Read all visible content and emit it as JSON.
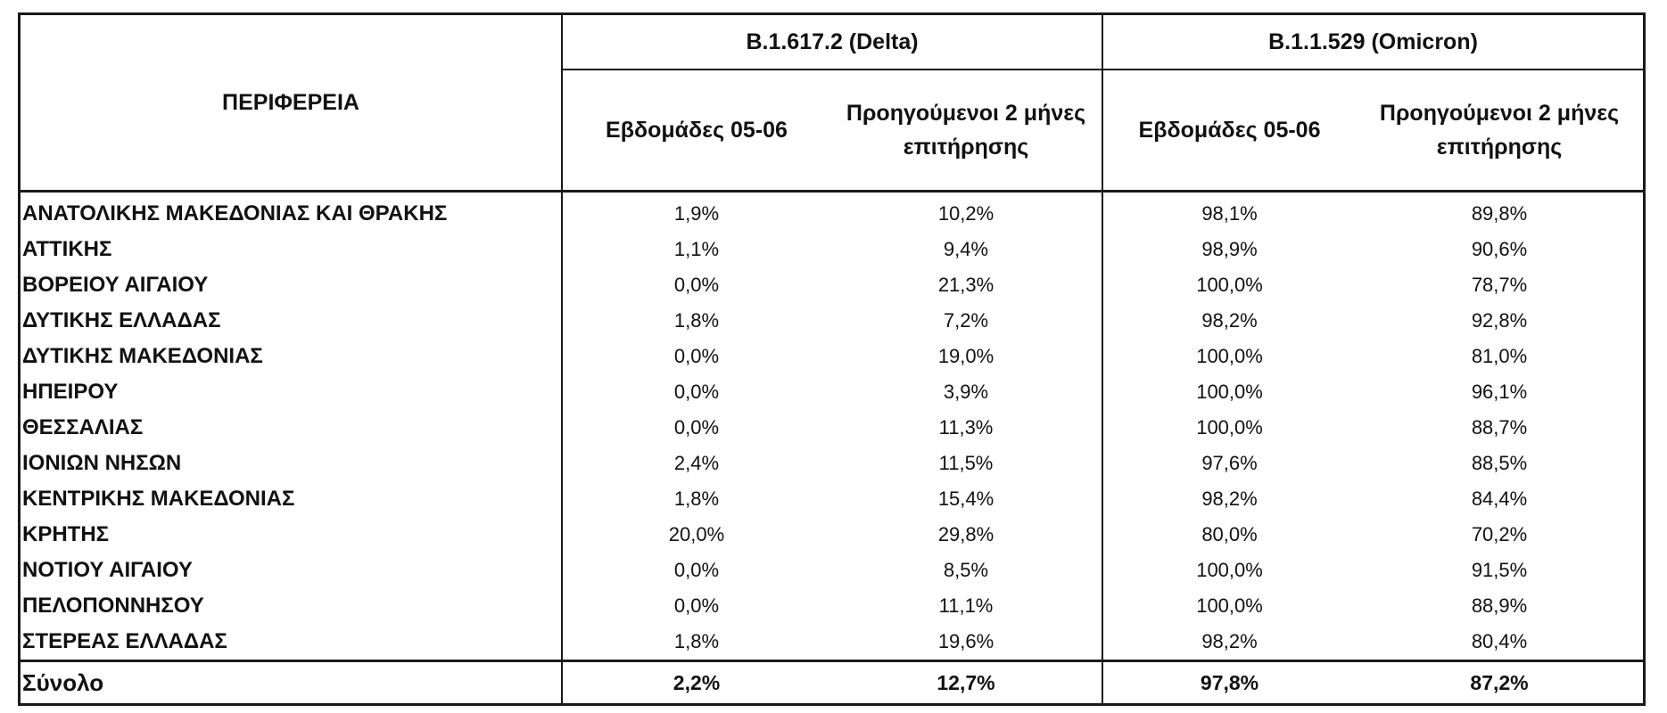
{
  "table": {
    "region_header": "ΠΕΡΙΦΕΡΕΙΑ",
    "groups": [
      {
        "name": "B.1.617.2 (Delta)",
        "sub_headers": [
          "Εβδομάδες 05-06",
          "Προηγούμενοι 2 μήνες επιτήρησης"
        ]
      },
      {
        "name": "B.1.1.529 (Omicron)",
        "sub_headers": [
          "Εβδομάδες 05-06",
          "Προηγούμενοι 2 μήνες επιτήρησης"
        ]
      }
    ],
    "rows": [
      {
        "region": "ΑΝΑΤΟΛΙΚΗΣ ΜΑΚΕΔΟΝΙΑΣ ΚΑΙ ΘΡΑΚΗΣ",
        "values": [
          "1,9%",
          "10,2%",
          "98,1%",
          "89,8%"
        ]
      },
      {
        "region": "ΑΤΤΙΚΗΣ",
        "values": [
          "1,1%",
          "9,4%",
          "98,9%",
          "90,6%"
        ]
      },
      {
        "region": "ΒΟΡΕΙΟΥ ΑΙΓΑΙΟΥ",
        "values": [
          "0,0%",
          "21,3%",
          "100,0%",
          "78,7%"
        ]
      },
      {
        "region": "ΔΥΤΙΚΗΣ ΕΛΛΑΔΑΣ",
        "values": [
          "1,8%",
          "7,2%",
          "98,2%",
          "92,8%"
        ]
      },
      {
        "region": "ΔΥΤΙΚΗΣ ΜΑΚΕΔΟΝΙΑΣ",
        "values": [
          "0,0%",
          "19,0%",
          "100,0%",
          "81,0%"
        ]
      },
      {
        "region": "ΗΠΕΙΡΟΥ",
        "values": [
          "0,0%",
          "3,9%",
          "100,0%",
          "96,1%"
        ]
      },
      {
        "region": "ΘΕΣΣΑΛΙΑΣ",
        "values": [
          "0,0%",
          "11,3%",
          "100,0%",
          "88,7%"
        ]
      },
      {
        "region": "ΙΟΝΙΩΝ ΝΗΣΩΝ",
        "values": [
          "2,4%",
          "11,5%",
          "97,6%",
          "88,5%"
        ]
      },
      {
        "region": "ΚΕΝΤΡΙΚΗΣ ΜΑΚΕΔΟΝΙΑΣ",
        "values": [
          "1,8%",
          "15,4%",
          "98,2%",
          "84,4%"
        ]
      },
      {
        "region": "ΚΡΗΤΗΣ",
        "values": [
          "20,0%",
          "29,8%",
          "80,0%",
          "70,2%"
        ]
      },
      {
        "region": "ΝΟΤΙΟΥ ΑΙΓΑΙΟΥ",
        "values": [
          "0,0%",
          "8,5%",
          "100,0%",
          "91,5%"
        ]
      },
      {
        "region": "ΠΕΛΟΠΟΝΝΗΣΟΥ",
        "values": [
          "0,0%",
          "11,1%",
          "100,0%",
          "88,9%"
        ]
      },
      {
        "region": "ΣΤΕΡΕΑΣ ΕΛΛΑΔΑΣ",
        "values": [
          "1,8%",
          "19,6%",
          "98,2%",
          "80,4%"
        ]
      }
    ],
    "total": {
      "region": "Σύνολο",
      "values": [
        "2,2%",
        "12,7%",
        "97,8%",
        "87,2%"
      ]
    }
  }
}
